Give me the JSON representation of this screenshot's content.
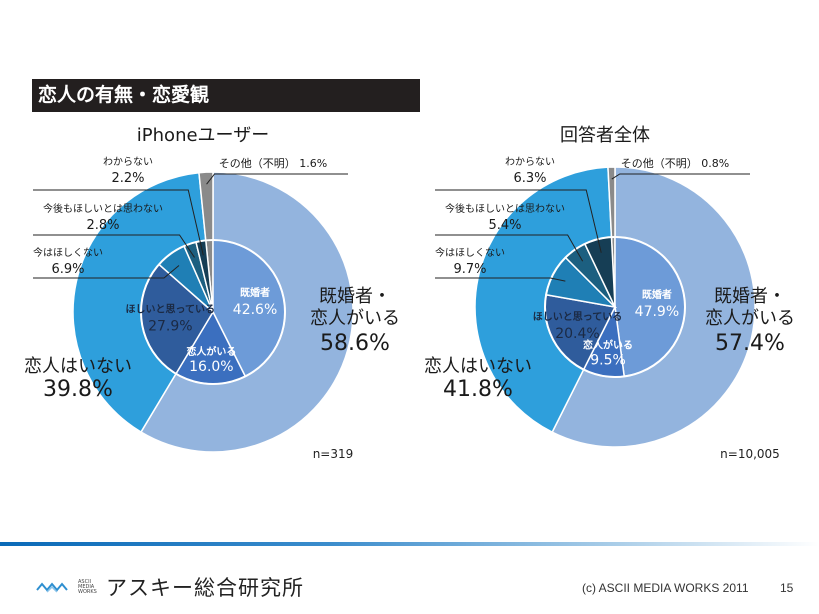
{
  "slide": {
    "title": "恋人の有無・恋愛観",
    "page_number": "15",
    "copyright": "(c) ASCII MEDIA WORKS 2011",
    "logo": {
      "small_lines": [
        "ASCII",
        "MEDIA",
        "WORKS"
      ],
      "name": "アスキー総合研究所"
    }
  },
  "colors": {
    "outer_married_or_partner": "#93b4de",
    "outer_no_partner": "#2e9fdc",
    "outer_other": "#8a8a8a",
    "inner_married": "#6d9bd8",
    "inner_partner": "#3b6fbf",
    "inner_want": "#2f5c9c",
    "inner_not_now": "#1f7fb5",
    "inner_not_want": "#1c5f80",
    "inner_unknown": "#163e55",
    "title_bar": "#231f1f"
  },
  "chart_data": [
    {
      "type": "pie",
      "title": "iPhoneユーザー",
      "n_label": "n=319",
      "outer": [
        {
          "label": "既婚者・恋人がいる",
          "value": 58.6,
          "display": "58.6%",
          "color_key": "outer_married_or_partner"
        },
        {
          "label": "恋人はいない",
          "value": 39.8,
          "display": "39.8%",
          "color_key": "outer_no_partner"
        },
        {
          "label": "その他（不明）",
          "value": 1.6,
          "display": "1.6%",
          "color_key": "outer_other"
        }
      ],
      "inner": [
        {
          "label": "既婚者",
          "value": 42.6,
          "display": "42.6%",
          "color_key": "inner_married"
        },
        {
          "label": "恋人がいる",
          "value": 16.0,
          "display": "16.0%",
          "color_key": "inner_partner"
        },
        {
          "label": "ほしいと思っている",
          "value": 27.9,
          "display": "27.9%",
          "color_key": "inner_want"
        },
        {
          "label": "今はほしくない",
          "value": 6.9,
          "display": "6.9%",
          "color_key": "inner_not_now"
        },
        {
          "label": "今後もほしいとは思わない",
          "value": 2.8,
          "display": "2.8%",
          "color_key": "inner_not_want"
        },
        {
          "label": "わからない",
          "value": 2.2,
          "display": "2.2%",
          "color_key": "inner_unknown"
        }
      ]
    },
    {
      "type": "pie",
      "title": "回答者全体",
      "n_label": "n=10,005",
      "outer": [
        {
          "label": "既婚者・恋人がいる",
          "value": 57.4,
          "display": "57.4%",
          "color_key": "outer_married_or_partner"
        },
        {
          "label": "恋人はいない",
          "value": 41.8,
          "display": "41.8%",
          "color_key": "outer_no_partner"
        },
        {
          "label": "その他（不明）",
          "value": 0.8,
          "display": "0.8%",
          "color_key": "outer_other"
        }
      ],
      "inner": [
        {
          "label": "既婚者",
          "value": 47.9,
          "display": "47.9%",
          "color_key": "inner_married"
        },
        {
          "label": "恋人がいる",
          "value": 9.5,
          "display": "9.5%",
          "color_key": "inner_partner"
        },
        {
          "label": "ほしいと思っている",
          "value": 20.4,
          "display": "20.4%",
          "color_key": "inner_want"
        },
        {
          "label": "今はほしくない",
          "value": 9.7,
          "display": "9.7%",
          "color_key": "inner_not_now"
        },
        {
          "label": "今後もほしいとは思わない",
          "value": 5.4,
          "display": "5.4%",
          "color_key": "inner_not_want"
        },
        {
          "label": "わからない",
          "value": 6.3,
          "display": "6.3%",
          "color_key": "inner_unknown"
        }
      ]
    }
  ]
}
